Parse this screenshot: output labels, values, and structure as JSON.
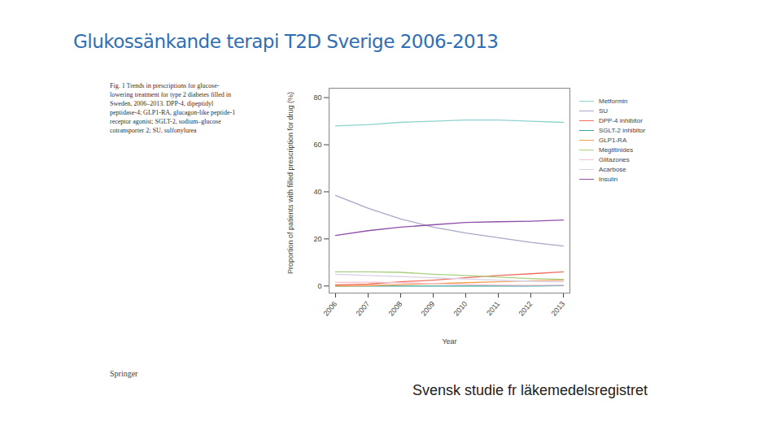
{
  "chart_data": {
    "type": "line",
    "title": "Glukossänkande terapi T2D Sverige 2006-2013",
    "caption": "Fig. 1 Trends in prescriptions for glucose-lowering treatment for type 2 diabetes filled in Sweden, 2006–2013. DPP-4, dipeptidyl peptidase-4; GLP1-RA, glucagon-like peptide-1 receptor agonist; SGLT-2, sodium–glucose cotransporter 2; SU, sulfonylurea",
    "publisher": "Springer",
    "footer": "Svensk studie fr läkemedelsregistret",
    "x_label": "Year",
    "y_label": "Proportion of patients with filled prescription for drug (%)",
    "x": [
      2006,
      2007,
      2008,
      2009,
      2010,
      2011,
      2012,
      2013
    ],
    "xlim": [
      2005.8,
      2013.2
    ],
    "xticks": [
      2006,
      2007,
      2008,
      2009,
      2010,
      2011,
      2012,
      2013
    ],
    "ylim": [
      -3,
      84
    ],
    "yticks": [
      0,
      20,
      40,
      60,
      80
    ],
    "legend": "top-right",
    "series": [
      {
        "name": "Metformin",
        "color": "#8fd3cf",
        "values": [
          68,
          68.5,
          69.5,
          70,
          70.5,
          70.5,
          70,
          69.5
        ]
      },
      {
        "name": "SU",
        "color": "#a8a8c8",
        "values": [
          38.5,
          33,
          28.5,
          25,
          22.5,
          20.5,
          18.5,
          17
        ]
      },
      {
        "name": "DPP-4 inhibitor",
        "color": "#f07060",
        "values": [
          0.5,
          0.8,
          1.8,
          2.5,
          3.5,
          4.5,
          5.2,
          6
        ]
      },
      {
        "name": "SGLT-2 inhibitor",
        "color": "#3aa3a0",
        "values": [
          0,
          0,
          0,
          0,
          0,
          0,
          0,
          0.2
        ]
      },
      {
        "name": "GLP1-RA",
        "color": "#f5a050",
        "values": [
          0,
          0.2,
          0.6,
          1,
          1.4,
          1.8,
          2.2,
          2.5
        ]
      },
      {
        "name": "Meglitinides",
        "color": "#a8d080",
        "values": [
          6,
          6,
          5.8,
          5,
          4.5,
          3.8,
          3.2,
          2.8
        ]
      },
      {
        "name": "Glitazones",
        "color": "#f5c0d0",
        "values": [
          1.5,
          1.6,
          1.4,
          1,
          0.6,
          0.4,
          0.3,
          0.3
        ]
      },
      {
        "name": "Acarbose",
        "color": "#d8d0e8",
        "values": [
          5,
          4.5,
          4,
          3.5,
          3,
          2.5,
          2,
          1.8
        ]
      },
      {
        "name": "Insulin",
        "color": "#9050a8",
        "values": [
          21.5,
          23.5,
          25,
          26,
          27,
          27.3,
          27.5,
          28
        ]
      }
    ]
  }
}
